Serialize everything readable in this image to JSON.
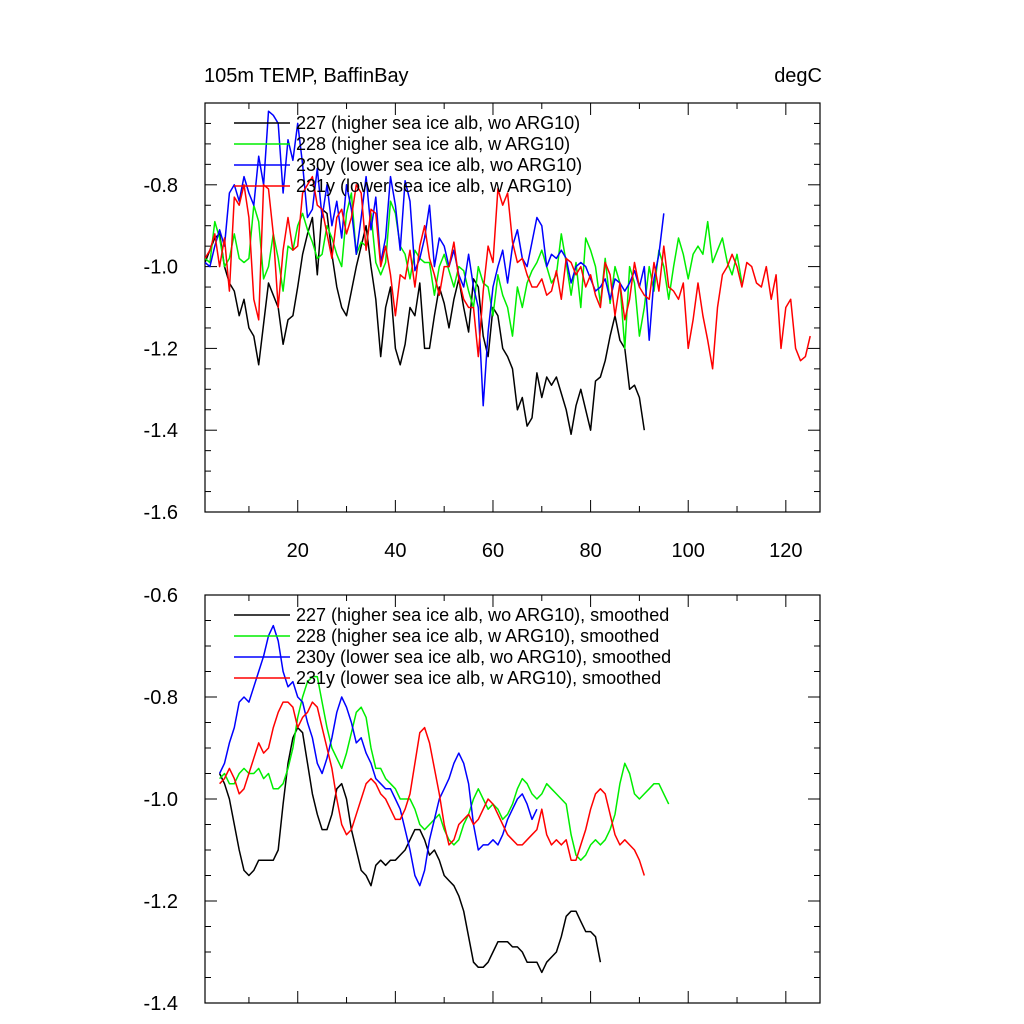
{
  "header": {
    "title": "105m TEMP, BaffinBay",
    "units": "degC"
  },
  "chart_data": [
    {
      "type": "line",
      "title": "105m TEMP, BaffinBay",
      "units": "degC",
      "xlim": [
        1,
        127
      ],
      "ylim": [
        -1.6,
        -0.6
      ],
      "x_ticks": [
        20,
        40,
        60,
        80,
        100,
        120
      ],
      "y_ticks": [
        -1.6,
        -1.4,
        -1.2,
        -1.0,
        -0.8
      ],
      "y_tick_labels": [
        "-1.6",
        "-1.4",
        "-1.2",
        "-1.0",
        "-0.8"
      ],
      "legend_position": "top-left",
      "grid": false,
      "series": [
        {
          "name": "227 (higher sea ice alb, wo ARG10)",
          "color": "#000000",
          "x_start": 1,
          "values": [
            -0.99,
            -0.96,
            -0.93,
            -0.92,
            -1.0,
            -1.04,
            -1.06,
            -1.12,
            -1.08,
            -1.15,
            -1.17,
            -1.24,
            -1.14,
            -1.04,
            -1.07,
            -1.1,
            -1.19,
            -1.13,
            -1.12,
            -1.05,
            -0.97,
            -0.92,
            -0.88,
            -1.02,
            -0.86,
            -0.87,
            -0.97,
            -1.05,
            -1.1,
            -1.12,
            -1.06,
            -1.0,
            -0.95,
            -0.9,
            -1.0,
            -1.08,
            -1.22,
            -1.1,
            -1.05,
            -1.2,
            -1.24,
            -1.19,
            -1.1,
            -1.12,
            -1.04,
            -1.2,
            -1.2,
            -1.12,
            -1.05,
            -1.09,
            -1.15,
            -1.08,
            -1.03,
            -1.1,
            -1.16,
            -1.03,
            -1.05,
            -1.17,
            -1.22,
            -1.1,
            -1.12,
            -1.2,
            -1.22,
            -1.25,
            -1.35,
            -1.32,
            -1.39,
            -1.37,
            -1.26,
            -1.32,
            -1.27,
            -1.29,
            -1.27,
            -1.31,
            -1.35,
            -1.41,
            -1.34,
            -1.3,
            -1.35,
            -1.4,
            -1.28,
            -1.27,
            -1.23,
            -1.17,
            -1.12,
            -1.18,
            -1.2,
            -1.3,
            -1.29,
            -1.32,
            -1.4
          ]
        },
        {
          "name": "228 (higher sea ice alb, w ARG10)",
          "color": "#00ee00",
          "x_start": 1,
          "values": [
            -0.98,
            -0.99,
            -0.89,
            -0.93,
            -1.0,
            -0.98,
            -0.92,
            -0.98,
            -0.99,
            -0.98,
            -0.85,
            -0.89,
            -1.03,
            -1.0,
            -0.92,
            -0.98,
            -1.06,
            -0.95,
            -0.96,
            -0.9,
            -0.87,
            -0.91,
            -0.94,
            -0.98,
            -0.97,
            -0.9,
            -0.93,
            -0.97,
            -1.0,
            -0.87,
            -0.82,
            -0.97,
            -0.94,
            -0.95,
            -0.87,
            -0.99,
            -1.02,
            -0.99,
            -0.84,
            -0.87,
            -0.95,
            -0.97,
            -1.03,
            -0.96,
            -0.98,
            -0.99,
            -0.99,
            -1.07,
            -1.0,
            -0.97,
            -1.01,
            -1.05,
            -1.0,
            -1.01,
            -1.06,
            -1.1,
            -1.0,
            -1.04,
            -1.05,
            -1.12,
            -1.02,
            -1.07,
            -1.1,
            -1.17,
            -1.05,
            -1.1,
            -1.04,
            -1.01,
            -0.99,
            -0.96,
            -1.0,
            -1.04,
            -1.02,
            -0.92,
            -0.99,
            -1.07,
            -0.99,
            -1.1,
            -0.93,
            -0.96,
            -1.0,
            -1.09,
            -0.98,
            -1.09,
            -1.0,
            -1.04,
            -1.2,
            -1.0,
            -1.04,
            -1.17,
            -1.1,
            -1.0,
            -1.06,
            -0.96,
            -1.0,
            -1.08,
            -1.0,
            -0.93,
            -0.97,
            -1.03,
            -0.97,
            -0.95,
            -0.97,
            -0.89,
            -0.99,
            -0.96,
            -0.93,
            -0.99,
            -1.02,
            -0.97,
            -1.04
          ]
        },
        {
          "name": "230y (lower sea ice alb, wo ARG10)",
          "color": "#0000ff",
          "x_start": 1,
          "values": [
            -0.99,
            -1.0,
            -0.95,
            -0.91,
            -0.95,
            -0.82,
            -0.8,
            -0.84,
            -0.78,
            -0.82,
            -0.85,
            -0.73,
            -0.8,
            -0.62,
            -0.63,
            -0.65,
            -0.82,
            -0.69,
            -0.74,
            -0.65,
            -0.75,
            -0.88,
            -0.86,
            -0.76,
            -0.88,
            -0.8,
            -0.9,
            -0.84,
            -0.93,
            -0.8,
            -0.86,
            -0.97,
            -0.88,
            -0.78,
            -0.91,
            -0.83,
            -0.99,
            -0.93,
            -0.78,
            -0.85,
            -0.96,
            -0.79,
            -0.84,
            -1.01,
            -0.98,
            -0.93,
            -0.85,
            -1.0,
            -0.93,
            -0.95,
            -1.0,
            -0.96,
            -1.02,
            -1.05,
            -0.97,
            -1.05,
            -1.1,
            -1.34,
            -1.16,
            -1.05,
            -1.0,
            -0.96,
            -1.04,
            -0.95,
            -0.91,
            -0.98,
            -1.0,
            -0.94,
            -0.88,
            -0.9,
            -1.0,
            -0.97,
            -0.98,
            -0.96,
            -0.98,
            -1.04,
            -1.0,
            -0.99,
            -1.0,
            -1.03,
            -1.06,
            -1.05,
            -1.03,
            -1.08,
            -1.03,
            -1.04,
            -1.06,
            -1.04,
            -1.01,
            -1.05,
            -1.0,
            -1.18,
            -1.03,
            -0.97,
            -0.87
          ]
        },
        {
          "name": "231y (lower sea ice alb, w ARG10)",
          "color": "#ff0000",
          "x_start": 1,
          "values": [
            -0.98,
            -0.96,
            -0.92,
            -1.0,
            -0.93,
            -1.06,
            -0.83,
            -0.85,
            -0.8,
            -0.88,
            -1.08,
            -1.13,
            -0.8,
            -0.81,
            -0.92,
            -1.1,
            -0.96,
            -0.88,
            -0.96,
            -0.95,
            -0.82,
            -0.8,
            -0.78,
            -0.85,
            -0.86,
            -0.92,
            -0.98,
            -0.88,
            -0.86,
            -0.92,
            -0.88,
            -0.8,
            -0.82,
            -0.96,
            -0.86,
            -0.87,
            -1.0,
            -0.95,
            -1.02,
            -1.12,
            -1.02,
            -1.03,
            -0.96,
            -1.05,
            -0.95,
            -0.9,
            -0.98,
            -1.02,
            -1.07,
            -1.0,
            -1.0,
            -0.94,
            -1.03,
            -1.08,
            -1.1,
            -1.1,
            -1.22,
            -1.06,
            -0.95,
            -0.99,
            -0.81,
            -0.85,
            -0.82,
            -0.94,
            -0.99,
            -0.98,
            -1.02,
            -1.05,
            -1.05,
            -1.03,
            -1.07,
            -1.06,
            -1.01,
            -1.08,
            -0.98,
            -0.99,
            -1.02,
            -1.0,
            -1.05,
            -1.02,
            -1.07,
            -1.1,
            -0.99,
            -1.02,
            -1.12,
            -1.04,
            -1.13,
            -1.08,
            -0.99,
            -1.05,
            -1.07,
            -1.08,
            -0.99,
            -1.06,
            -0.95,
            -1.05,
            -1.06,
            -1.08,
            -1.04,
            -1.2,
            -1.13,
            -1.04,
            -1.12,
            -1.18,
            -1.25,
            -1.1,
            -1.02,
            -1.0,
            -0.97,
            -1.0,
            -1.05,
            -0.99,
            -1.0,
            -1.04,
            -1.05,
            -1.0,
            -1.08,
            -1.02,
            -1.2,
            -1.1,
            -1.08,
            -1.2,
            -1.23,
            -1.22,
            -1.17
          ]
        }
      ]
    },
    {
      "type": "line",
      "xlim": [
        1,
        127
      ],
      "ylim": [
        -1.4,
        -0.6
      ],
      "y_ticks": [
        -1.4,
        -1.2,
        -1.0,
        -0.8,
        -0.6
      ],
      "y_tick_labels": [
        "-1.4",
        "-1.2",
        "-1.0",
        "-0.8",
        "-0.6"
      ],
      "legend_position": "top-left",
      "grid": false,
      "series": [
        {
          "name": "227 (higher sea ice alb, wo ARG10), smoothed",
          "color": "#000000",
          "x_start": 4,
          "values": [
            -0.95,
            -0.97,
            -1.0,
            -1.05,
            -1.1,
            -1.14,
            -1.15,
            -1.14,
            -1.12,
            -1.12,
            -1.12,
            -1.12,
            -1.1,
            -1.01,
            -0.93,
            -0.88,
            -0.86,
            -0.87,
            -0.93,
            -0.99,
            -1.03,
            -1.06,
            -1.06,
            -1.03,
            -0.98,
            -0.97,
            -1.0,
            -1.06,
            -1.1,
            -1.14,
            -1.15,
            -1.17,
            -1.13,
            -1.12,
            -1.13,
            -1.12,
            -1.12,
            -1.11,
            -1.1,
            -1.08,
            -1.06,
            -1.06,
            -1.08,
            -1.11,
            -1.1,
            -1.12,
            -1.15,
            -1.16,
            -1.17,
            -1.19,
            -1.22,
            -1.27,
            -1.32,
            -1.33,
            -1.33,
            -1.32,
            -1.3,
            -1.28,
            -1.28,
            -1.28,
            -1.29,
            -1.29,
            -1.3,
            -1.32,
            -1.32,
            -1.32,
            -1.34,
            -1.32,
            -1.31,
            -1.3,
            -1.27,
            -1.23,
            -1.22,
            -1.22,
            -1.24,
            -1.26,
            -1.26,
            -1.27,
            -1.32
          ]
        },
        {
          "name": "228 (higher sea ice alb, w ARG10), smoothed",
          "color": "#00ee00",
          "x_start": 4,
          "values": [
            -0.96,
            -0.95,
            -0.97,
            -0.97,
            -0.95,
            -0.94,
            -0.95,
            -0.95,
            -0.94,
            -0.96,
            -0.95,
            -0.98,
            -0.98,
            -0.97,
            -0.94,
            -0.9,
            -0.84,
            -0.8,
            -0.77,
            -0.76,
            -0.76,
            -0.81,
            -0.86,
            -0.9,
            -0.92,
            -0.94,
            -0.91,
            -0.87,
            -0.83,
            -0.82,
            -0.84,
            -0.9,
            -0.94,
            -0.94,
            -0.96,
            -0.97,
            -0.98,
            -1.0,
            -1.0,
            -1.0,
            -1.02,
            -1.05,
            -1.06,
            -1.05,
            -1.04,
            -1.03,
            -1.06,
            -1.08,
            -1.09,
            -1.08,
            -1.05,
            -1.03,
            -1.0,
            -0.98,
            -1.0,
            -1.02,
            -1.01,
            -1.02,
            -1.04,
            -1.03,
            -1.01,
            -0.98,
            -0.96,
            -0.97,
            -0.99,
            -1.0,
            -0.99,
            -0.97,
            -0.98,
            -0.99,
            -1.0,
            -1.01,
            -1.07,
            -1.11,
            -1.12,
            -1.11,
            -1.09,
            -1.08,
            -1.09,
            -1.08,
            -1.06,
            -1.03,
            -0.97,
            -0.93,
            -0.95,
            -0.99,
            -1.0,
            -0.99,
            -0.98,
            -0.97,
            -0.97,
            -0.99,
            -1.01
          ]
        },
        {
          "name": "230y (lower sea ice alb, wo ARG10), smoothed",
          "color": "#0000ff",
          "x_start": 4,
          "values": [
            -0.95,
            -0.93,
            -0.89,
            -0.86,
            -0.81,
            -0.8,
            -0.81,
            -0.78,
            -0.75,
            -0.72,
            -0.68,
            -0.66,
            -0.69,
            -0.75,
            -0.78,
            -0.77,
            -0.8,
            -0.81,
            -0.85,
            -0.88,
            -0.93,
            -0.95,
            -0.92,
            -0.88,
            -0.83,
            -0.8,
            -0.82,
            -0.85,
            -0.89,
            -0.88,
            -0.91,
            -0.93,
            -0.96,
            -0.97,
            -0.98,
            -0.98,
            -1.0,
            -1.02,
            -1.06,
            -1.1,
            -1.15,
            -1.17,
            -1.14,
            -1.08,
            -1.04,
            -1.0,
            -0.98,
            -0.96,
            -0.93,
            -0.91,
            -0.93,
            -0.97,
            -1.05,
            -1.1,
            -1.09,
            -1.09,
            -1.08,
            -1.09,
            -1.07,
            -1.04,
            -1.02,
            -1.0,
            -0.99,
            -1.01,
            -1.04,
            -1.02
          ]
        },
        {
          "name": "231y (lower sea ice alb, w ARG10), smoothed",
          "color": "#ff0000",
          "x_start": 4,
          "values": [
            -0.97,
            -0.96,
            -0.94,
            -0.96,
            -0.99,
            -0.98,
            -0.95,
            -0.92,
            -0.89,
            -0.91,
            -0.9,
            -0.86,
            -0.83,
            -0.81,
            -0.81,
            -0.82,
            -0.86,
            -0.84,
            -0.83,
            -0.81,
            -0.82,
            -0.86,
            -0.9,
            -0.94,
            -1.0,
            -1.05,
            -1.07,
            -1.06,
            -1.03,
            -1.0,
            -0.97,
            -0.96,
            -0.97,
            -0.99,
            -1.0,
            -1.02,
            -1.04,
            -1.04,
            -1.02,
            -0.99,
            -0.93,
            -0.87,
            -0.86,
            -0.89,
            -0.94,
            -0.99,
            -1.05,
            -1.09,
            -1.08,
            -1.05,
            -1.04,
            -1.03,
            -1.05,
            -1.04,
            -1.02,
            -1.0,
            -1.01,
            -1.03,
            -1.05,
            -1.07,
            -1.08,
            -1.09,
            -1.09,
            -1.08,
            -1.07,
            -1.06,
            -1.02,
            -1.07,
            -1.09,
            -1.08,
            -1.09,
            -1.08,
            -1.12,
            -1.12,
            -1.09,
            -1.06,
            -1.02,
            -0.99,
            -0.98,
            -0.99,
            -1.03,
            -1.07,
            -1.09,
            -1.08,
            -1.09,
            -1.1,
            -1.12,
            -1.15
          ]
        }
      ]
    }
  ]
}
